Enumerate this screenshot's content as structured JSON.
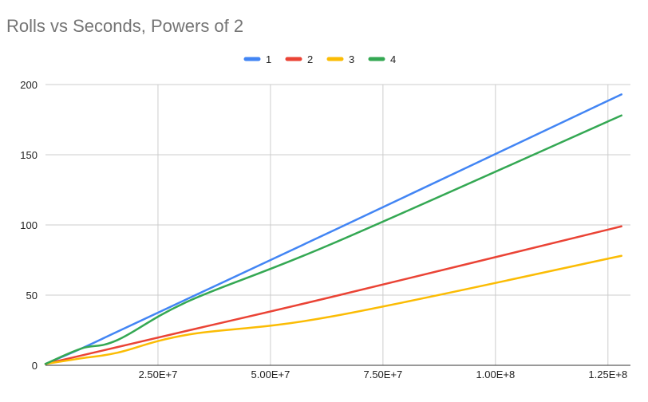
{
  "chart_data": {
    "type": "line",
    "title": "Rolls vs Seconds, Powers of 2",
    "xlabel": "",
    "ylabel": "",
    "xlim": [
      0,
      130000000
    ],
    "ylim": [
      0,
      200
    ],
    "grid": true,
    "legend_position": "top",
    "y_ticks": [
      {
        "value": 0,
        "label": "0"
      },
      {
        "value": 50,
        "label": "50"
      },
      {
        "value": 100,
        "label": "100"
      },
      {
        "value": 150,
        "label": "150"
      },
      {
        "value": 200,
        "label": "200"
      }
    ],
    "x_ticks": [
      {
        "value": 25000000,
        "label": "2.50E+7"
      },
      {
        "value": 50000000,
        "label": "5.00E+7"
      },
      {
        "value": 75000000,
        "label": "7.50E+7"
      },
      {
        "value": 100000000,
        "label": "1.00E+8"
      },
      {
        "value": 125000000,
        "label": "1.25E+8"
      }
    ],
    "series": [
      {
        "name": "1",
        "color": "#4285f4",
        "points": [
          [
            0,
            1
          ],
          [
            8000000,
            12
          ],
          [
            16000000,
            24
          ],
          [
            32000000,
            48
          ],
          [
            64000000,
            96
          ],
          [
            128000000,
            193
          ]
        ]
      },
      {
        "name": "2",
        "color": "#ea4335",
        "points": [
          [
            0,
            1
          ],
          [
            8000000,
            7
          ],
          [
            16000000,
            13
          ],
          [
            32000000,
            25
          ],
          [
            64000000,
            49
          ],
          [
            128000000,
            99
          ]
        ]
      },
      {
        "name": "3",
        "color": "#fbbc04",
        "points": [
          [
            0,
            1
          ],
          [
            8000000,
            5
          ],
          [
            16000000,
            9
          ],
          [
            32000000,
            22
          ],
          [
            64000000,
            35
          ],
          [
            128000000,
            78
          ]
        ]
      },
      {
        "name": "4",
        "color": "#34a853",
        "points": [
          [
            0,
            1
          ],
          [
            8000000,
            12
          ],
          [
            16000000,
            18
          ],
          [
            32000000,
            46
          ],
          [
            64000000,
            87
          ],
          [
            128000000,
            178
          ]
        ]
      }
    ]
  }
}
